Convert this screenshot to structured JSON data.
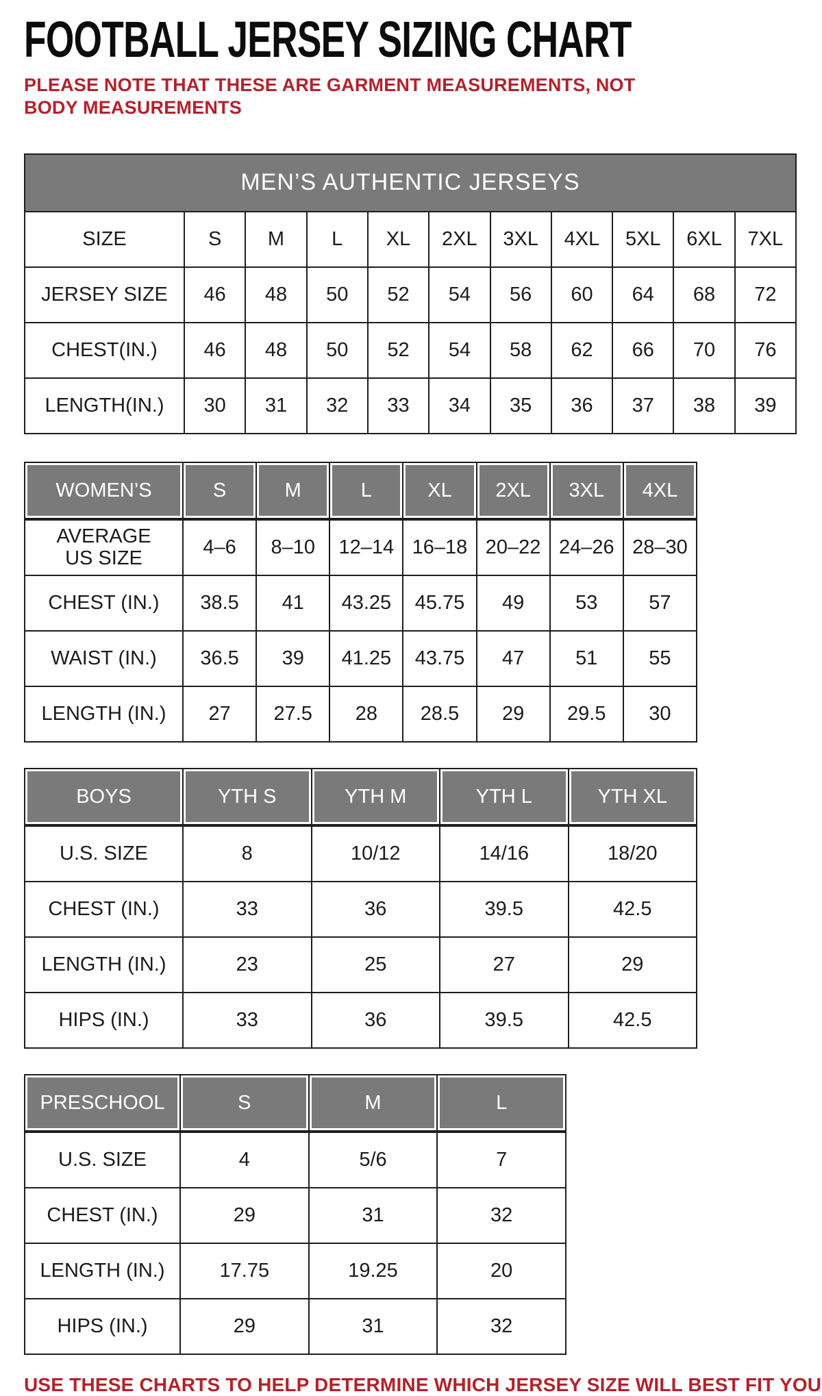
{
  "page": {
    "title": "FOOTBALL JERSEY SIZING CHART",
    "note": "PLEASE NOTE THAT THESE ARE GARMENT MEASUREMENTS, NOT BODY MEASUREMENTS",
    "footer": "USE THESE CHARTS TO HELP DETERMINE WHICH JERSEY SIZE WILL BEST FIT YOU."
  },
  "colors": {
    "header_gray": "#7a7a7a",
    "border_dark": "#1e1e1e",
    "accent_red": "#b5212b",
    "text_dark": "#1b1b1b"
  },
  "tables": {
    "mens": {
      "banner": "MEN’S AUTHENTIC JERSEYS",
      "rows": [
        {
          "label": "SIZE",
          "values": [
            "S",
            "M",
            "L",
            "XL",
            "2XL",
            "3XL",
            "4XL",
            "5XL",
            "6XL",
            "7XL"
          ]
        },
        {
          "label": "JERSEY SIZE",
          "values": [
            "46",
            "48",
            "50",
            "52",
            "54",
            "56",
            "60",
            "64",
            "68",
            "72"
          ]
        },
        {
          "label": "CHEST(IN.)",
          "values": [
            "46",
            "48",
            "50",
            "52",
            "54",
            "58",
            "62",
            "66",
            "70",
            "76"
          ]
        },
        {
          "label": "LENGTH(IN.)",
          "values": [
            "30",
            "31",
            "32",
            "33",
            "34",
            "35",
            "36",
            "37",
            "38",
            "39"
          ]
        }
      ]
    },
    "womens": {
      "header": {
        "label": "WOMEN’S",
        "values": [
          "S",
          "M",
          "L",
          "XL",
          "2XL",
          "3XL",
          "4XL"
        ]
      },
      "rows": [
        {
          "label": "AVERAGE\nUS SIZE",
          "values": [
            "4–6",
            "8–10",
            "12–14",
            "16–18",
            "20–22",
            "24–26",
            "28–30"
          ]
        },
        {
          "label": "CHEST (IN.)",
          "values": [
            "38.5",
            "41",
            "43.25",
            "45.75",
            "49",
            "53",
            "57"
          ]
        },
        {
          "label": "WAIST (IN.)",
          "values": [
            "36.5",
            "39",
            "41.25",
            "43.75",
            "47",
            "51",
            "55"
          ]
        },
        {
          "label": "LENGTH (IN.)",
          "values": [
            "27",
            "27.5",
            "28",
            "28.5",
            "29",
            "29.5",
            "30"
          ]
        }
      ]
    },
    "boys": {
      "header": {
        "label": "BOYS",
        "values": [
          "YTH S",
          "YTH M",
          "YTH L",
          "YTH XL"
        ]
      },
      "rows": [
        {
          "label": "U.S. SIZE",
          "values": [
            "8",
            "10/12",
            "14/16",
            "18/20"
          ]
        },
        {
          "label": "CHEST (IN.)",
          "values": [
            "33",
            "36",
            "39.5",
            "42.5"
          ]
        },
        {
          "label": "LENGTH (IN.)",
          "values": [
            "23",
            "25",
            "27",
            "29"
          ]
        },
        {
          "label": "HIPS (IN.)",
          "values": [
            "33",
            "36",
            "39.5",
            "42.5"
          ]
        }
      ]
    },
    "preschool": {
      "header": {
        "label": "PRESCHOOL",
        "values": [
          "S",
          "M",
          "L"
        ]
      },
      "rows": [
        {
          "label": "U.S. SIZE",
          "values": [
            "4",
            "5/6",
            "7"
          ]
        },
        {
          "label": "CHEST (IN.)",
          "values": [
            "29",
            "31",
            "32"
          ]
        },
        {
          "label": "LENGTH (IN.)",
          "values": [
            "17.75",
            "19.25",
            "20"
          ]
        },
        {
          "label": "HIPS (IN.)",
          "values": [
            "29",
            "31",
            "32"
          ]
        }
      ]
    }
  }
}
